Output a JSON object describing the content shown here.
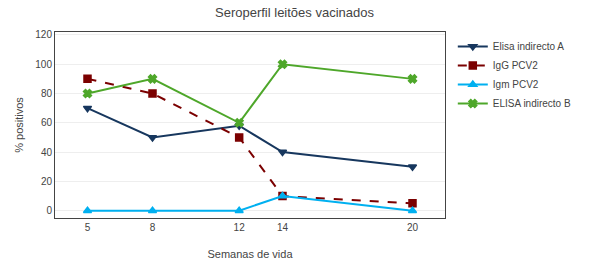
{
  "chart_data": {
    "type": "line",
    "title": "Seroperfil leitões vacinados",
    "xlabel": "Semanas de vida",
    "ylabel": "% positivos",
    "x": [
      5,
      8,
      12,
      14,
      20
    ],
    "series": [
      {
        "name": "Elisa indirecto A",
        "color": "#17375E",
        "marker": "triangle-down",
        "line_style": "solid",
        "values": [
          70,
          50,
          58,
          40,
          30
        ]
      },
      {
        "name": "IgG PCV2",
        "color": "#7B0000",
        "marker": "square",
        "line_style": "dashed",
        "values": [
          90,
          80,
          50,
          10,
          5
        ]
      },
      {
        "name": "Igm PCV2",
        "color": "#00B0F0",
        "marker": "triangle-up",
        "line_style": "solid",
        "values": [
          0,
          0,
          0,
          10,
          0
        ]
      },
      {
        "name": "ELISA indirecto B",
        "color": "#4EA72A",
        "marker": "x",
        "line_style": "solid",
        "values": [
          80,
          90,
          60,
          100,
          90
        ]
      }
    ],
    "xlim": [
      3.5,
      21.5
    ],
    "xticks": [
      5,
      8,
      12,
      14,
      20
    ],
    "ylim": [
      -5,
      122
    ],
    "yticks": [
      0,
      20,
      40,
      60,
      80,
      100,
      120
    ],
    "grid": "y",
    "legend": "upper right"
  }
}
